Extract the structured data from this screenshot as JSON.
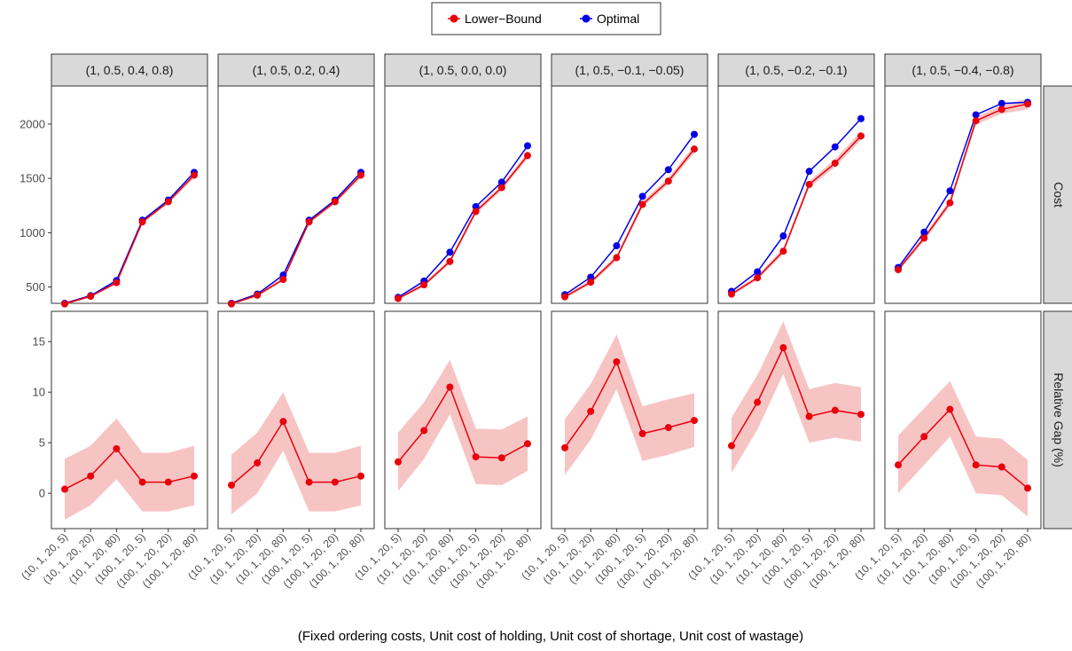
{
  "chart_data": {
    "type": "line",
    "facet_columns": [
      "(1, 0.5, 0.4, 0.8)",
      "(1, 0.5, 0.2, 0.4)",
      "(1, 0.5, 0.0, 0.0)",
      "(1, 0.5, −0.1, −0.05)",
      "(1, 0.5, −0.2, −0.1)",
      "(1, 0.5, −0.4, −0.8)"
    ],
    "facet_rows": [
      "Cost",
      "Relative Gap (%)"
    ],
    "categories": [
      "(10, 1, 20, 5)",
      "(10, 1, 20, 20)",
      "(10, 1, 20, 80)",
      "(100, 1, 20, 5)",
      "(100, 1, 20, 20)",
      "(100, 1, 20, 80)"
    ],
    "xlabel": "(Fixed ordering costs, Unit cost of holding, Unit cost of shortage, Unit cost of wastage)",
    "legend": {
      "position": "top",
      "entries": [
        "Lower−Bound",
        "Optimal"
      ]
    },
    "colors": {
      "lower_bound": "#e8000b",
      "optimal": "#0000e8",
      "band": "#f7c1c1"
    },
    "cost": {
      "ylim": [
        350,
        2350
      ],
      "yticks": [
        500,
        1000,
        1500,
        2000
      ],
      "lower_bound": [
        [
          345,
          415,
          540,
          1100,
          1285,
          1530
        ],
        [
          345,
          425,
          570,
          1100,
          1285,
          1530
        ],
        [
          395,
          520,
          735,
          1195,
          1415,
          1710
        ],
        [
          410,
          545,
          770,
          1260,
          1475,
          1770
        ],
        [
          435,
          585,
          830,
          1445,
          1640,
          1890
        ],
        [
          660,
          950,
          1275,
          2030,
          2135,
          2185
        ]
      ],
      "optimal": [
        [
          350,
          420,
          560,
          1115,
          1300,
          1555
        ],
        [
          350,
          435,
          610,
          1115,
          1300,
          1555
        ],
        [
          405,
          555,
          820,
          1240,
          1465,
          1800
        ],
        [
          430,
          590,
          880,
          1335,
          1580,
          1905
        ],
        [
          460,
          640,
          970,
          1565,
          1790,
          2050
        ],
        [
          680,
          1005,
          1385,
          2085,
          2190,
          2200
        ]
      ],
      "band": [
        [
          [
            335,
            360
          ],
          [
            405,
            430
          ],
          [
            525,
            560
          ],
          [
            1085,
            1120
          ],
          [
            1265,
            1305
          ],
          [
            1505,
            1555
          ]
        ],
        [
          [
            335,
            360
          ],
          [
            410,
            440
          ],
          [
            555,
            590
          ],
          [
            1085,
            1120
          ],
          [
            1265,
            1305
          ],
          [
            1505,
            1555
          ]
        ],
        [
          [
            380,
            410
          ],
          [
            505,
            540
          ],
          [
            715,
            760
          ],
          [
            1170,
            1220
          ],
          [
            1390,
            1440
          ],
          [
            1680,
            1740
          ]
        ],
        [
          [
            395,
            425
          ],
          [
            525,
            565
          ],
          [
            745,
            795
          ],
          [
            1235,
            1290
          ],
          [
            1445,
            1505
          ],
          [
            1735,
            1805
          ]
        ],
        [
          [
            420,
            455
          ],
          [
            565,
            605
          ],
          [
            805,
            860
          ],
          [
            1415,
            1475
          ],
          [
            1605,
            1675
          ],
          [
            1850,
            1935
          ]
        ],
        [
          [
            640,
            680
          ],
          [
            925,
            975
          ],
          [
            1245,
            1305
          ],
          [
            1995,
            2065
          ],
          [
            2095,
            2175
          ],
          [
            2135,
            2235
          ]
        ]
      ]
    },
    "relative_gap": {
      "ylim": [
        -3.5,
        18
      ],
      "yticks": [
        0,
        5,
        10,
        15
      ],
      "values": [
        [
          0.4,
          1.7,
          4.4,
          1.1,
          1.1,
          1.7
        ],
        [
          0.8,
          3.0,
          7.1,
          1.1,
          1.1,
          1.7
        ],
        [
          3.1,
          6.2,
          10.5,
          3.6,
          3.5,
          4.9
        ],
        [
          4.5,
          8.1,
          13.0,
          5.9,
          6.5,
          7.2
        ],
        [
          4.7,
          9.0,
          14.4,
          7.6,
          8.2,
          7.8
        ],
        [
          2.8,
          5.6,
          8.3,
          2.8,
          2.6,
          0.5
        ]
      ],
      "band": [
        [
          [
            -2.6,
            3.4
          ],
          [
            -1.2,
            4.7
          ],
          [
            1.4,
            7.4
          ],
          [
            -1.8,
            4.0
          ],
          [
            -1.8,
            4.0
          ],
          [
            -1.2,
            4.7
          ]
        ],
        [
          [
            -2.1,
            3.8
          ],
          [
            0.0,
            6.0
          ],
          [
            4.2,
            10.0
          ],
          [
            -1.8,
            4.0
          ],
          [
            -1.8,
            4.0
          ],
          [
            -1.2,
            4.7
          ]
        ],
        [
          [
            0.2,
            6.0
          ],
          [
            3.4,
            9.0
          ],
          [
            7.8,
            13.2
          ],
          [
            0.9,
            6.4
          ],
          [
            0.8,
            6.3
          ],
          [
            2.2,
            7.6
          ]
        ],
        [
          [
            1.8,
            7.3
          ],
          [
            5.3,
            10.8
          ],
          [
            10.3,
            15.7
          ],
          [
            3.2,
            8.6
          ],
          [
            3.8,
            9.3
          ],
          [
            4.6,
            9.9
          ]
        ],
        [
          [
            2.0,
            7.5
          ],
          [
            6.3,
            11.7
          ],
          [
            11.8,
            17.0
          ],
          [
            5.0,
            10.3
          ],
          [
            5.5,
            10.9
          ],
          [
            5.1,
            10.5
          ]
        ],
        [
          [
            0.0,
            5.7
          ],
          [
            2.8,
            8.4
          ],
          [
            5.6,
            11.1
          ],
          [
            0.0,
            5.6
          ],
          [
            -0.2,
            5.4
          ],
          [
            -2.3,
            3.3
          ]
        ]
      ]
    }
  }
}
